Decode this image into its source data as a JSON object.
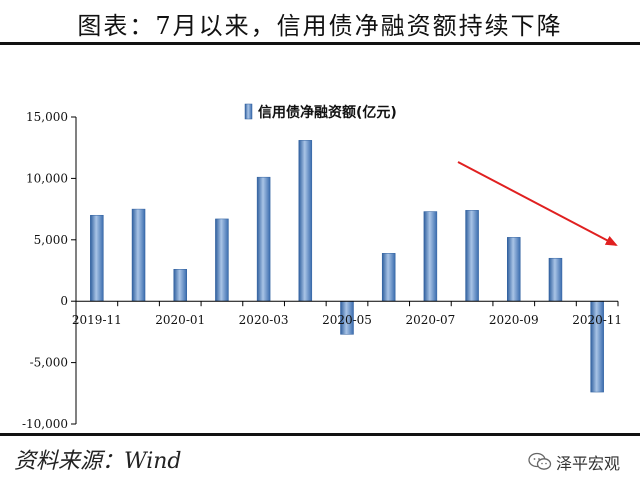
{
  "header": {
    "title": "图表：7月以来，信用债净融资额持续下降"
  },
  "footer": {
    "source": "资料来源：Wind",
    "watermark": "泽平宏观"
  },
  "chart_data": {
    "type": "bar",
    "categories": [
      "2019-11",
      "2019-12",
      "2020-01",
      "2020-02",
      "2020-03",
      "2020-04",
      "2020-05",
      "2020-06",
      "2020-07",
      "2020-08",
      "2020-09",
      "2020-10",
      "2020-11"
    ],
    "x_tick_labels": [
      "2019-11",
      "2020-01",
      "2020-03",
      "2020-05",
      "2020-07",
      "2020-09",
      "2020-11"
    ],
    "series": [
      {
        "name": "信用债净融资额(亿元)",
        "values": [
          7000,
          7500,
          2600,
          6700,
          10100,
          13100,
          -2700,
          3900,
          7300,
          7400,
          5200,
          3500,
          -7400
        ]
      }
    ],
    "ylim": [
      -10000,
      15000
    ],
    "yticks": [
      -10000,
      -5000,
      0,
      5000,
      10000,
      15000
    ],
    "ytick_labels": [
      "-10,000",
      "-5,000",
      "0",
      "5,000",
      "10,000",
      "15,000"
    ],
    "legend_position": "top-center",
    "annotation": "red arrow indicating a downward trend",
    "colors": {
      "bar": "#4a7ebb",
      "bar_light": "#a9c4e6",
      "arrow": "#e02020"
    }
  }
}
